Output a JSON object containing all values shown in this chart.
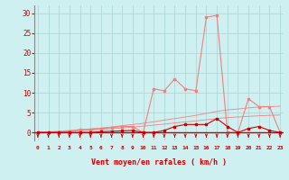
{
  "x": [
    0,
    1,
    2,
    3,
    4,
    5,
    6,
    7,
    8,
    9,
    10,
    11,
    12,
    13,
    14,
    15,
    16,
    17,
    18,
    19,
    20,
    21,
    22,
    23
  ],
  "y_rafales": [
    0,
    0,
    0,
    0.3,
    0.7,
    0.8,
    1.0,
    1.2,
    1.5,
    1.5,
    0,
    11,
    10.5,
    13.5,
    11,
    10.5,
    29,
    29.5,
    0,
    0,
    8.5,
    6.5,
    6.5,
    0
  ],
  "y_moyen": [
    0,
    0,
    0,
    0,
    0,
    0,
    0.2,
    0.3,
    0.4,
    0.5,
    0,
    0,
    0.5,
    1.5,
    2,
    2,
    2,
    3.5,
    1.5,
    0,
    1,
    1.5,
    0.5,
    0
  ],
  "y_line_upper": [
    0,
    0.15,
    0.3,
    0.5,
    0.7,
    0.9,
    1.1,
    1.4,
    1.7,
    2.0,
    2.3,
    2.7,
    3.1,
    3.5,
    3.9,
    4.3,
    4.8,
    5.3,
    5.7,
    5.9,
    6.2,
    6.4,
    6.5,
    6.6
  ],
  "y_line_lower": [
    0,
    0.08,
    0.17,
    0.3,
    0.45,
    0.6,
    0.75,
    0.95,
    1.15,
    1.35,
    1.6,
    1.85,
    2.1,
    2.4,
    2.65,
    2.9,
    3.2,
    3.5,
    3.75,
    3.9,
    4.05,
    4.2,
    4.3,
    4.4
  ],
  "bg_color": "#cff0f0",
  "grid_color": "#aad4d4",
  "line_color_rafales": "#f08080",
  "line_color_moyen": "#cc0000",
  "xlabel": "Vent moyen/en rafales ( km/h )",
  "xlabel_color": "#cc0000",
  "tick_color": "#cc0000",
  "ylabel_values": [
    0,
    5,
    10,
    15,
    20,
    25,
    30
  ],
  "ylim": [
    -2,
    32
  ],
  "xlim": [
    -0.3,
    23.3
  ],
  "arrow_color": "#cc0000",
  "left_spine_color": "#888888"
}
